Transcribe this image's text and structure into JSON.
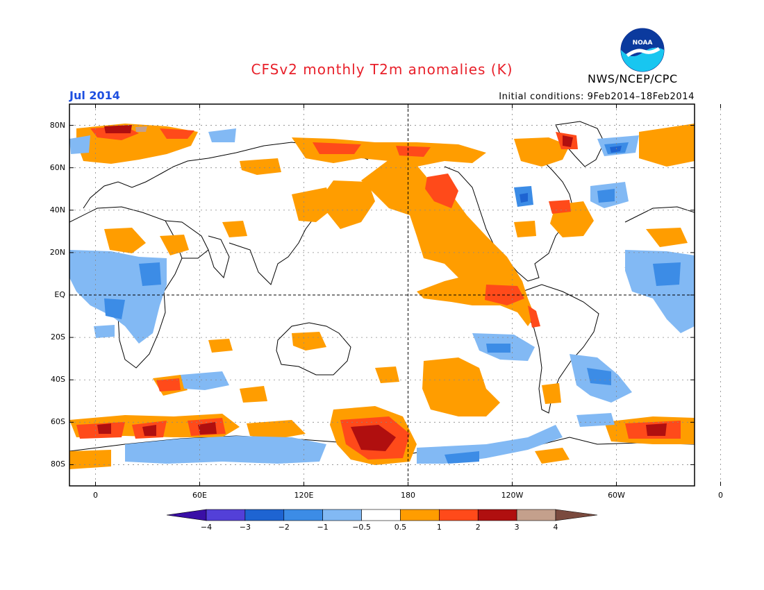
{
  "title": "CFSv2 monthly T2m anomalies (K)",
  "agency": "NWS/NCEP/CPC",
  "logo_text": "NOAA",
  "valid_month": "Jul 2014",
  "initial_conditions": "Initial conditions: 9Feb2014–18Feb2014",
  "lat_labels": [
    "80N",
    "60N",
    "40N",
    "20N",
    "EQ",
    "20S",
    "40S",
    "60S",
    "80S"
  ],
  "lon_labels": [
    "0",
    "60E",
    "120E",
    "180",
    "120W",
    "60W",
    "0"
  ],
  "colorbar": {
    "labels": [
      "−4",
      "−3",
      "−2",
      "−1",
      "−0.5",
      "0.5",
      "1",
      "2",
      "3",
      "4"
    ],
    "colors": [
      "#3a0fa6",
      "#5340d8",
      "#1e64d2",
      "#3c8ce6",
      "#82b9f4",
      "#ffffff",
      "#ff9d00",
      "#ff4a1a",
      "#b00f0f",
      "#c4a08c",
      "#7a4a3e"
    ]
  },
  "colors": {
    "warm_1": "#ff9d00",
    "warm_2": "#ff4a1a",
    "warm_3": "#b00f0f",
    "warm_4": "#c4a08c",
    "cool_1": "#82b9f4",
    "cool_2": "#3c8ce6",
    "cool_3": "#1e64d2",
    "cool_4": "#5340d8",
    "title": "#e8202a",
    "month": "#1d4fe0"
  }
}
